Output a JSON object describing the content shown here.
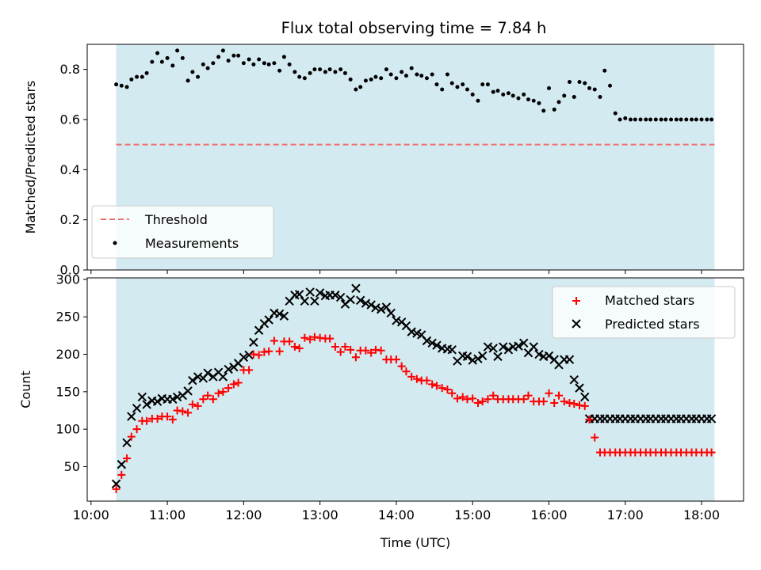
{
  "chart_data": [
    {
      "type": "scatter",
      "title": "Flux total observing time = 7.84 h",
      "xlabel": "",
      "ylabel": "Matched/Predicted stars",
      "ylim": [
        0,
        0.9
      ],
      "yticks": [
        0.0,
        0.2,
        0.4,
        0.6,
        0.8
      ],
      "ytick_labels": [
        "0.0",
        "0.2",
        "0.4",
        "0.6",
        "0.8"
      ],
      "xlim_hours": [
        9.95,
        18.55
      ],
      "observing_window_hours": [
        10.33,
        18.17
      ],
      "shade_color": "#d3eaf0",
      "threshold": {
        "name": "Threshold",
        "value": 0.5,
        "color": "#f07070"
      },
      "legend": {
        "placement": "lower-left",
        "entries": [
          "Threshold",
          "Measurements"
        ]
      },
      "series": [
        {
          "name": "Measurements",
          "color": "#000000",
          "marker": "dot",
          "x_hours": [
            10.33,
            10.4,
            10.47,
            10.53,
            10.6,
            10.67,
            10.73,
            10.8,
            10.87,
            10.93,
            11.0,
            11.07,
            11.13,
            11.2,
            11.27,
            11.33,
            11.4,
            11.47,
            11.53,
            11.6,
            11.67,
            11.73,
            11.8,
            11.87,
            11.93,
            12.0,
            12.07,
            12.13,
            12.2,
            12.27,
            12.33,
            12.4,
            12.47,
            12.53,
            12.6,
            12.67,
            12.73,
            12.8,
            12.87,
            12.93,
            13.0,
            13.07,
            13.13,
            13.2,
            13.27,
            13.33,
            13.4,
            13.47,
            13.53,
            13.6,
            13.67,
            13.73,
            13.8,
            13.87,
            13.93,
            14.0,
            14.07,
            14.13,
            14.2,
            14.27,
            14.33,
            14.4,
            14.47,
            14.53,
            14.6,
            14.67,
            14.73,
            14.8,
            14.87,
            14.93,
            15.0,
            15.07,
            15.13,
            15.2,
            15.27,
            15.33,
            15.4,
            15.47,
            15.53,
            15.6,
            15.67,
            15.73,
            15.8,
            15.87,
            15.93,
            16.0,
            16.07,
            16.13,
            16.2,
            16.27,
            16.33,
            16.4,
            16.47,
            16.53,
            16.6,
            16.67,
            16.73,
            16.8,
            16.87,
            16.93,
            17.0,
            17.07,
            17.13,
            17.2,
            17.27,
            17.33,
            17.4,
            17.47,
            17.53,
            17.6,
            17.67,
            17.73,
            17.8,
            17.87,
            17.93,
            18.0,
            18.07,
            18.13
          ],
          "values": [
            0.74,
            0.735,
            0.73,
            0.76,
            0.77,
            0.77,
            0.785,
            0.83,
            0.865,
            0.83,
            0.845,
            0.815,
            0.875,
            0.845,
            0.755,
            0.79,
            0.77,
            0.82,
            0.805,
            0.825,
            0.85,
            0.875,
            0.835,
            0.855,
            0.855,
            0.825,
            0.84,
            0.82,
            0.84,
            0.825,
            0.82,
            0.825,
            0.795,
            0.85,
            0.82,
            0.79,
            0.77,
            0.765,
            0.785,
            0.8,
            0.8,
            0.79,
            0.8,
            0.79,
            0.8,
            0.785,
            0.76,
            0.72,
            0.73,
            0.755,
            0.76,
            0.77,
            0.765,
            0.8,
            0.78,
            0.765,
            0.79,
            0.775,
            0.805,
            0.78,
            0.775,
            0.765,
            0.78,
            0.74,
            0.72,
            0.78,
            0.745,
            0.73,
            0.74,
            0.72,
            0.7,
            0.675,
            0.74,
            0.74,
            0.71,
            0.715,
            0.7,
            0.705,
            0.695,
            0.685,
            0.7,
            0.68,
            0.675,
            0.665,
            0.635,
            0.725,
            0.64,
            0.67,
            0.695,
            0.75,
            0.69,
            0.75,
            0.745,
            0.725,
            0.72,
            0.69,
            0.795,
            0.735,
            0.625,
            0.6,
            0.605,
            0.6,
            0.6,
            0.6,
            0.6,
            0.6,
            0.6,
            0.6,
            0.6,
            0.6,
            0.6,
            0.6,
            0.6,
            0.6,
            0.6,
            0.6,
            0.6,
            0.6
          ]
        }
      ]
    },
    {
      "type": "scatter",
      "title": "",
      "xlabel": "Time (UTC)",
      "ylabel": "Count",
      "ylim": [
        4,
        302
      ],
      "yticks": [
        50,
        100,
        150,
        200,
        250,
        300
      ],
      "ytick_labels": [
        "50",
        "100",
        "150",
        "200",
        "250",
        "300"
      ],
      "xticks_hours": [
        10,
        11,
        12,
        13,
        14,
        15,
        16,
        17,
        18
      ],
      "xtick_labels": [
        "10:00",
        "11:00",
        "12:00",
        "13:00",
        "14:00",
        "15:00",
        "16:00",
        "17:00",
        "18:00"
      ],
      "xlim_hours": [
        9.95,
        18.55
      ],
      "observing_window_hours": [
        10.33,
        18.17
      ],
      "legend": {
        "placement": "upper-right",
        "entries": [
          "Matched stars",
          "Predicted stars"
        ]
      },
      "series": [
        {
          "name": "Matched stars",
          "color": "#ff0000",
          "marker": "plus",
          "x_hours": [
            10.33,
            10.4,
            10.47,
            10.53,
            10.6,
            10.67,
            10.73,
            10.8,
            10.87,
            10.93,
            11.0,
            11.07,
            11.13,
            11.2,
            11.27,
            11.33,
            11.4,
            11.47,
            11.53,
            11.6,
            11.67,
            11.73,
            11.8,
            11.87,
            11.93,
            12.0,
            12.07,
            12.13,
            12.2,
            12.27,
            12.33,
            12.4,
            12.47,
            12.53,
            12.6,
            12.67,
            12.73,
            12.8,
            12.87,
            12.93,
            13.0,
            13.07,
            13.13,
            13.2,
            13.27,
            13.33,
            13.4,
            13.47,
            13.53,
            13.6,
            13.67,
            13.73,
            13.8,
            13.87,
            13.93,
            14.0,
            14.07,
            14.13,
            14.2,
            14.27,
            14.33,
            14.4,
            14.47,
            14.53,
            14.6,
            14.67,
            14.73,
            14.8,
            14.87,
            14.93,
            15.0,
            15.07,
            15.13,
            15.2,
            15.27,
            15.33,
            15.4,
            15.47,
            15.53,
            15.6,
            15.67,
            15.73,
            15.8,
            15.87,
            15.93,
            16.0,
            16.07,
            16.13,
            16.2,
            16.27,
            16.33,
            16.4,
            16.47,
            16.53,
            16.6,
            16.67,
            16.73,
            16.8,
            16.87,
            16.93,
            17.0,
            17.07,
            17.13,
            17.2,
            17.27,
            17.33,
            17.4,
            17.47,
            17.53,
            17.6,
            17.67,
            17.73,
            17.8,
            17.87,
            17.93,
            18.0,
            18.07,
            18.13
          ],
          "values": [
            20,
            39,
            61,
            90,
            100,
            111,
            111,
            114,
            114,
            117,
            117,
            113,
            125,
            124,
            122,
            133,
            131,
            140,
            145,
            140,
            148,
            150,
            155,
            160,
            162,
            179,
            179,
            200,
            199,
            203,
            204,
            218,
            204,
            217,
            217,
            210,
            208,
            222,
            220,
            223,
            222,
            221,
            221,
            210,
            203,
            210,
            206,
            196,
            205,
            205,
            202,
            206,
            205,
            193,
            193,
            193,
            184,
            177,
            170,
            167,
            165,
            165,
            160,
            158,
            155,
            153,
            148,
            141,
            143,
            140,
            141,
            135,
            137,
            140,
            145,
            140,
            140,
            140,
            140,
            140,
            140,
            145,
            137,
            137,
            137,
            148,
            135,
            145,
            137,
            135,
            134,
            132,
            131,
            113,
            89,
            69,
            69,
            69,
            69,
            69,
            69,
            69,
            69,
            69,
            69,
            69,
            69,
            69,
            69,
            69,
            69,
            69,
            69,
            69,
            69,
            69,
            69,
            69
          ]
        },
        {
          "name": "Predicted stars",
          "color": "#000000",
          "marker": "x",
          "x_hours": [
            10.33,
            10.4,
            10.47,
            10.53,
            10.6,
            10.67,
            10.73,
            10.8,
            10.87,
            10.93,
            11.0,
            11.07,
            11.13,
            11.2,
            11.27,
            11.33,
            11.4,
            11.47,
            11.53,
            11.6,
            11.67,
            11.73,
            11.8,
            11.87,
            11.93,
            12.0,
            12.07,
            12.13,
            12.2,
            12.27,
            12.33,
            12.4,
            12.47,
            12.53,
            12.6,
            12.67,
            12.73,
            12.8,
            12.87,
            12.93,
            13.0,
            13.07,
            13.13,
            13.2,
            13.27,
            13.33,
            13.4,
            13.47,
            13.53,
            13.6,
            13.67,
            13.73,
            13.8,
            13.87,
            13.93,
            14.0,
            14.07,
            14.13,
            14.2,
            14.27,
            14.33,
            14.4,
            14.47,
            14.53,
            14.6,
            14.67,
            14.73,
            14.8,
            14.87,
            14.93,
            15.0,
            15.07,
            15.13,
            15.2,
            15.27,
            15.33,
            15.4,
            15.47,
            15.53,
            15.6,
            15.67,
            15.73,
            15.8,
            15.87,
            15.93,
            16.0,
            16.07,
            16.13,
            16.2,
            16.27,
            16.33,
            16.4,
            16.47,
            16.53,
            16.6,
            16.67,
            16.73,
            16.8,
            16.87,
            16.93,
            17.0,
            17.07,
            17.13,
            17.2,
            17.27,
            17.33,
            17.4,
            17.47,
            17.53,
            17.6,
            17.67,
            17.73,
            17.8,
            17.87,
            17.93,
            18.0,
            18.07,
            18.13
          ],
          "values": [
            27,
            53,
            82,
            117,
            128,
            143,
            133,
            138,
            137,
            141,
            140,
            140,
            143,
            145,
            151,
            165,
            170,
            168,
            175,
            170,
            176,
            170,
            180,
            183,
            188,
            196,
            199,
            216,
            232,
            241,
            246,
            255,
            254,
            251,
            271,
            279,
            280,
            271,
            283,
            271,
            282,
            278,
            279,
            279,
            276,
            267,
            273,
            288,
            272,
            268,
            266,
            262,
            260,
            263,
            255,
            245,
            243,
            238,
            230,
            228,
            226,
            218,
            215,
            212,
            208,
            207,
            206,
            191,
            198,
            197,
            192,
            194,
            198,
            210,
            208,
            197,
            210,
            206,
            210,
            211,
            215,
            202,
            210,
            200,
            197,
            198,
            193,
            186,
            193,
            193,
            166,
            155,
            143,
            114,
            114,
            114,
            114,
            114,
            114,
            114,
            114,
            114,
            114,
            114,
            114,
            114,
            114,
            114,
            114,
            114,
            114,
            114,
            114,
            114,
            114,
            114,
            114,
            114
          ]
        }
      ]
    }
  ]
}
